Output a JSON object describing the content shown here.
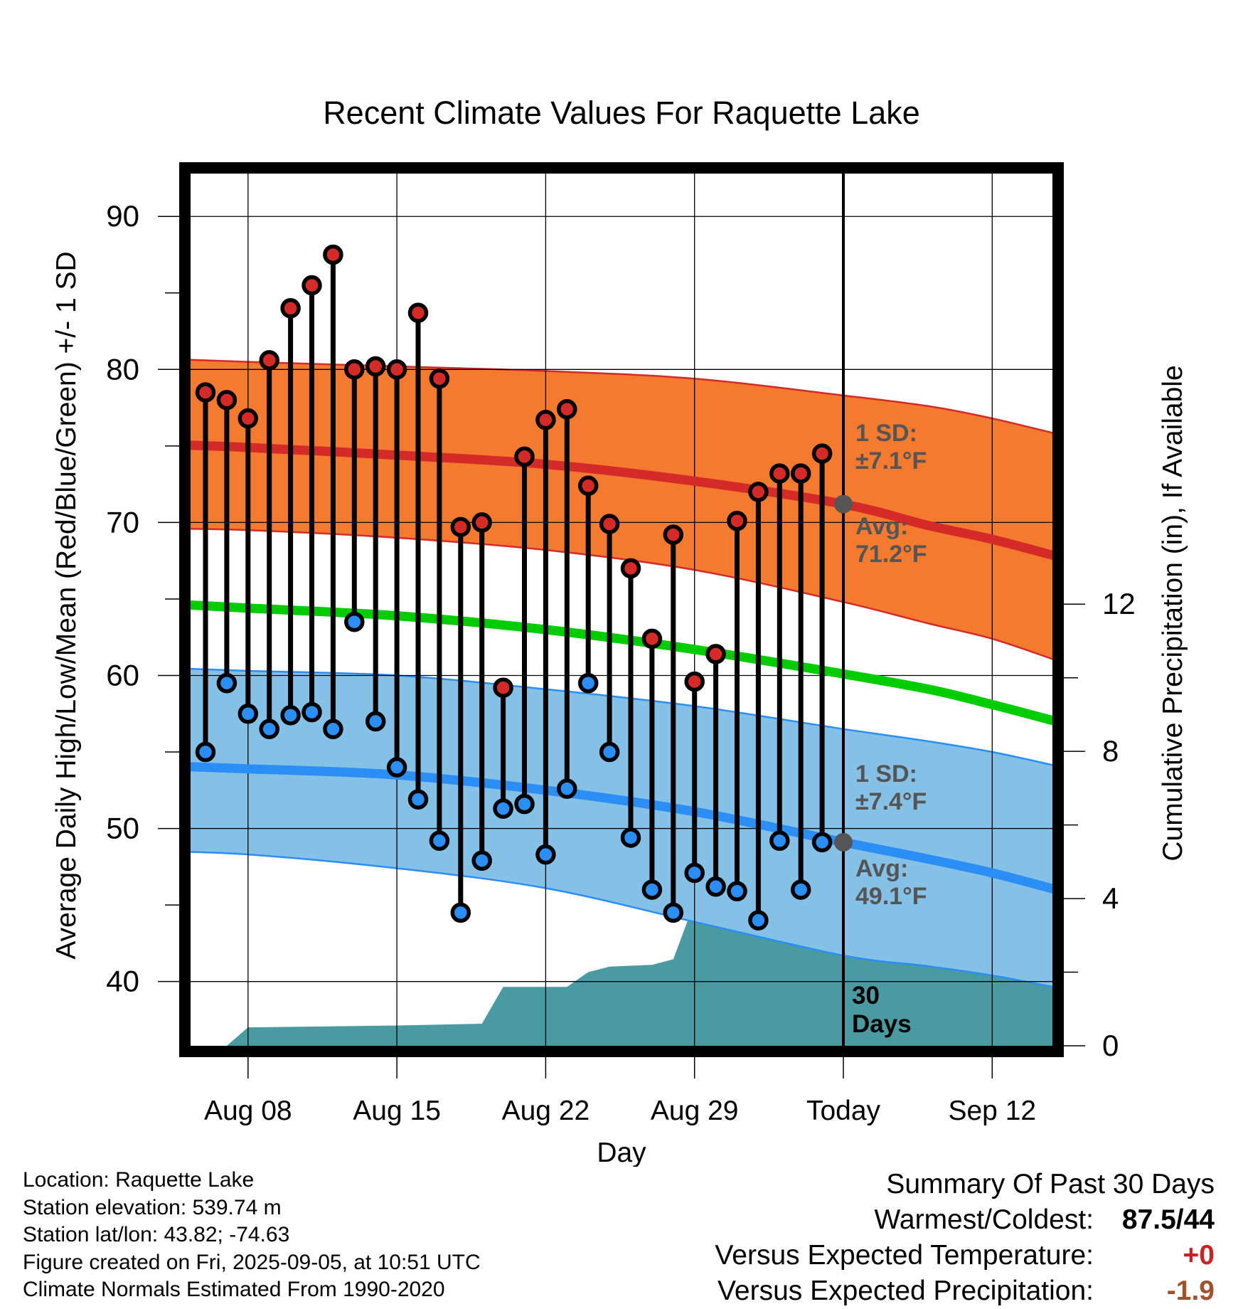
{
  "chart_data": {
    "type": "line",
    "title": "Recent Climate Values For Raquette Lake",
    "xlabel": "Day",
    "ylabel": "Average Daily High/Low/Mean (Red/Blue/Green) +/- 1 SD",
    "y2label": "Cumulative Precipitation (in), If Available",
    "ylim": [
      35.8,
      92.8
    ],
    "y2lim": [
      0,
      23.7
    ],
    "xlim": [
      -32.7,
      11.2
    ],
    "yticks": [
      40,
      50,
      60,
      70,
      80,
      90
    ],
    "y2ticks": [
      0,
      4,
      8,
      12
    ],
    "xticks": [
      {
        "day": -28,
        "label": "Aug 08"
      },
      {
        "day": -21,
        "label": "Aug 15"
      },
      {
        "day": -14,
        "label": "Aug 22"
      },
      {
        "day": -7,
        "label": "Aug 29"
      },
      {
        "day": 0,
        "label": "Today"
      },
      {
        "day": 7,
        "label": "Sep 12"
      }
    ],
    "grid": true,
    "daily_high": [
      78.5,
      78.0,
      76.8,
      80.6,
      84.0,
      85.5,
      87.5,
      80.0,
      80.2,
      80.0,
      83.7,
      79.4,
      69.7,
      70.0,
      59.2,
      74.3,
      76.7,
      77.4,
      72.4,
      69.9,
      67.0,
      62.4,
      69.2,
      59.6,
      61.4,
      70.1,
      72.0,
      73.2,
      73.2,
      74.5
    ],
    "daily_low": [
      55.0,
      59.5,
      57.5,
      56.5,
      57.4,
      57.6,
      56.5,
      63.5,
      57.0,
      54.0,
      51.9,
      49.2,
      44.5,
      47.9,
      51.3,
      51.6,
      48.3,
      52.6,
      59.5,
      55.0,
      49.4,
      46.0,
      44.5,
      47.1,
      46.2,
      45.9,
      44.0,
      49.2,
      46.0,
      49.1
    ],
    "day_offsets_first": -30,
    "normal_high": {
      "x": [
        -32,
        -28,
        -21,
        -14,
        -7,
        0,
        4,
        7,
        10
      ],
      "mean": [
        75.1,
        74.9,
        74.4,
        73.8,
        72.7,
        71.2,
        69.8,
        68.9,
        67.8
      ],
      "plus_sd": [
        80.7,
        80.5,
        80.2,
        79.9,
        79.4,
        78.3,
        77.6,
        76.8,
        75.8
      ],
      "minus_sd": [
        69.6,
        69.5,
        69.0,
        68.2,
        66.9,
        64.8,
        63.4,
        62.4,
        61.0
      ]
    },
    "normal_mean": {
      "x": [
        -32,
        -28,
        -21,
        -14,
        -7,
        0,
        4,
        7,
        10
      ],
      "values": [
        64.7,
        64.4,
        63.9,
        63.0,
        61.7,
        60.1,
        59.1,
        58.1,
        57.0
      ]
    },
    "normal_low": {
      "x": [
        -32,
        -28,
        -21,
        -14,
        -7,
        0,
        4,
        7,
        10
      ],
      "mean": [
        54.1,
        53.9,
        53.5,
        52.5,
        51.1,
        49.1,
        48.0,
        47.1,
        46.0
      ],
      "plus_sd": [
        60.5,
        60.3,
        60.0,
        59.1,
        58.0,
        56.5,
        55.7,
        55.0,
        54.1
      ],
      "minus_sd": [
        48.5,
        48.3,
        47.4,
        46.1,
        43.9,
        41.7,
        41.0,
        40.4,
        39.6
      ]
    },
    "precip_cumulative": {
      "x": [
        -30,
        -29,
        -28,
        -21,
        -17,
        -16,
        -14,
        -13,
        -12,
        -11,
        -9,
        -8,
        -7,
        -6,
        -3,
        -2,
        -1,
        10.7
      ],
      "values": [
        0,
        0,
        0.5,
        0.55,
        0.6,
        1.6,
        1.6,
        1.6,
        2.0,
        2.15,
        2.2,
        2.35,
        3.9,
        3.9,
        4.1,
        4.1,
        5.5,
        5.5
      ]
    },
    "today_marker_high": 71.2,
    "today_marker_low": 49.1,
    "annotations": {
      "high_sd_l1": "1 SD:",
      "high_sd_l2": "±7.1°F",
      "high_avg_l1": "Avg:",
      "high_avg_l2": "71.2°F",
      "low_sd_l1": "1 SD:",
      "low_sd_l2": "±7.4°F",
      "low_avg_l1": "Avg:",
      "low_avg_l2": "49.1°F",
      "period_l1": "30",
      "period_l2": "Days"
    },
    "colors": {
      "high_band": "#f47a30",
      "high_line": "#d42a28",
      "low_band": "#85c1e6",
      "low_line": "#2a8ef5",
      "mean_line": "#00cc00",
      "precip": "#4a9aa2",
      "high_dot": "#d42a28",
      "low_dot": "#2a8ef5",
      "marker": "#555555",
      "annotation": "#555555"
    }
  },
  "info": {
    "location": "Location: Raquette Lake",
    "elevation": "Station elevation: 539.74 m",
    "latlon": "Station lat/lon: 43.82; -74.63",
    "created": "Figure created on Fri, 2025-09-05, at 10:51 UTC",
    "normals": "Climate Normals Estimated From 1990-2020"
  },
  "summary": {
    "heading": "Summary Of Past 30 Days",
    "warm_cold_label": "Warmest/Coldest:",
    "warm_cold_value": "87.5/44",
    "temp_label": "Versus Expected Temperature:",
    "temp_value": "+0",
    "temp_color": "#cc2222",
    "precip_label": "Versus Expected Precipitation:",
    "precip_value": "-1.9",
    "precip_color": "#a0522d"
  }
}
